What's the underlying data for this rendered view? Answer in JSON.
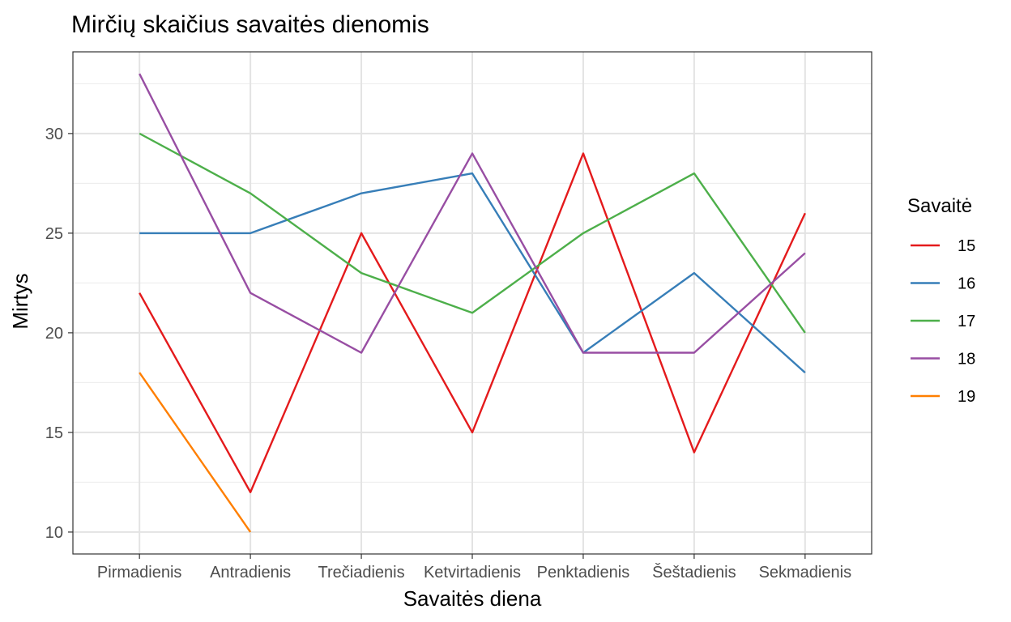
{
  "chart_data": {
    "type": "line",
    "title": "Mirčių skaičius savaitės dienomis",
    "xlabel": "Savaitės diena",
    "ylabel": "Mirtys",
    "categories": [
      "Pirmadienis",
      "Antradienis",
      "Trečiadienis",
      "Ketvirtadienis",
      "Penktadienis",
      "Šeštadienis",
      "Sekmadienis"
    ],
    "ylim": [
      8.9,
      34.1
    ],
    "yticks": [
      10,
      15,
      20,
      25,
      30
    ],
    "grid": true,
    "legend": {
      "title": "Savaitė",
      "position": "right"
    },
    "series": [
      {
        "name": "15",
        "color": "#e41a1c",
        "values": [
          22,
          12,
          25,
          15,
          29,
          14,
          26
        ]
      },
      {
        "name": "16",
        "color": "#377eb8",
        "values": [
          25,
          25,
          27,
          28,
          19,
          23,
          18
        ]
      },
      {
        "name": "17",
        "color": "#4daf4a",
        "values": [
          30,
          27,
          23,
          21,
          25,
          28,
          20
        ]
      },
      {
        "name": "18",
        "color": "#984ea3",
        "values": [
          33,
          22,
          19,
          29,
          19,
          19,
          24
        ]
      },
      {
        "name": "19",
        "color": "#ff7f00",
        "values": [
          18,
          10,
          null,
          null,
          null,
          null,
          null
        ]
      }
    ]
  }
}
